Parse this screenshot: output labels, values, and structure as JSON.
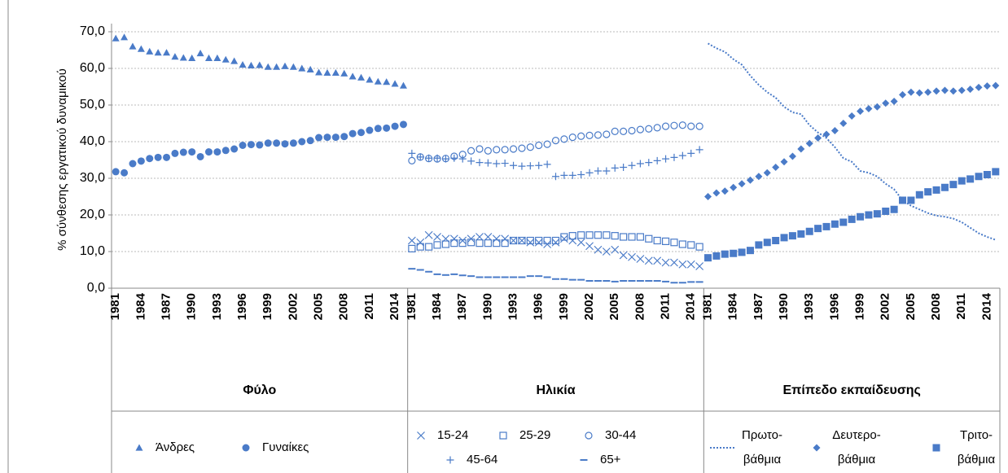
{
  "chart_data": {
    "type": "scatter",
    "ylabel": "% σύνθεσης εργατικού δυναμικού",
    "ylim": [
      0,
      70
    ],
    "yticks": [
      {
        "value": 0,
        "label": "0,0"
      },
      {
        "value": 10,
        "label": "10,0"
      },
      {
        "value": 20,
        "label": "20,0"
      },
      {
        "value": 30,
        "label": "30,0"
      },
      {
        "value": 40,
        "label": "40,0"
      },
      {
        "value": 50,
        "label": "50,0"
      },
      {
        "value": 60,
        "label": "60,0"
      },
      {
        "value": 70,
        "label": "70,0"
      }
    ],
    "grid": true,
    "color": "#4a7bc8",
    "categories": [
      "1981",
      null,
      null,
      "1984",
      null,
      null,
      "1987",
      null,
      null,
      "1990",
      null,
      null,
      "1993",
      null,
      null,
      "1996",
      null,
      null,
      "1999",
      null,
      null,
      "2002",
      null,
      null,
      "2005",
      null,
      null,
      "2008",
      null,
      null,
      "2011",
      null,
      null,
      "2014",
      null
    ],
    "groups": [
      {
        "name": "Φύλο",
        "series": [
          {
            "name": "Άνδρες",
            "marker": "triangle",
            "values": [
              68.2,
              68.5,
              66.0,
              65.3,
              64.6,
              64.3,
              64.3,
              63.2,
              62.9,
              62.8,
              64.1,
              62.8,
              62.8,
              62.4,
              62.0,
              61.0,
              60.8,
              60.9,
              60.4,
              60.4,
              60.6,
              60.4,
              60.0,
              59.7,
              58.9,
              58.8,
              58.8,
              58.6,
              57.8,
              57.5,
              56.9,
              56.4,
              56.3,
              55.8,
              55.3
            ]
          },
          {
            "name": "Γυναίκες",
            "marker": "circle",
            "values": [
              31.8,
              31.5,
              34.0,
              34.7,
              35.4,
              35.7,
              35.7,
              36.8,
              37.1,
              37.2,
              35.9,
              37.2,
              37.2,
              37.6,
              38.0,
              39.0,
              39.2,
              39.1,
              39.6,
              39.6,
              39.4,
              39.6,
              40.0,
              40.3,
              41.1,
              41.2,
              41.2,
              41.4,
              42.2,
              42.5,
              43.1,
              43.6,
              43.7,
              44.2,
              44.7
            ]
          }
        ]
      },
      {
        "name": "Ηλικία",
        "series": [
          {
            "name": "15-24",
            "marker": "x",
            "values": [
              13.0,
              12.5,
              14.5,
              14.0,
              13.5,
              13.5,
              13.0,
              13.5,
              14.0,
              14.0,
              13.5,
              13.5,
              13.0,
              13.0,
              12.5,
              12.5,
              12.0,
              12.5,
              13.5,
              13.0,
              12.5,
              11.5,
              10.5,
              10.0,
              10.5,
              9.0,
              8.5,
              8.0,
              7.5,
              7.5,
              7.0,
              7.0,
              6.5,
              6.5,
              6.0
            ]
          },
          {
            "name": "25-29",
            "marker": "square-open",
            "values": [
              10.8,
              11.3,
              11.3,
              11.8,
              12.0,
              12.3,
              12.3,
              12.5,
              12.3,
              12.3,
              12.3,
              12.3,
              13.0,
              13.0,
              13.0,
              13.0,
              13.0,
              13.0,
              14.0,
              14.3,
              14.5,
              14.5,
              14.5,
              14.5,
              14.3,
              14.0,
              14.0,
              14.0,
              13.5,
              13.0,
              12.8,
              12.5,
              12.0,
              11.8,
              11.3
            ]
          },
          {
            "name": "30-44",
            "marker": "circle-open",
            "values": [
              34.8,
              35.8,
              35.4,
              35.3,
              35.4,
              36.0,
              36.5,
              37.5,
              38.0,
              37.5,
              37.8,
              37.8,
              38.0,
              38.2,
              38.5,
              39.0,
              39.3,
              40.3,
              40.7,
              41.2,
              41.5,
              41.7,
              41.8,
              42.0,
              42.8,
              42.8,
              43.0,
              43.3,
              43.5,
              43.8,
              44.2,
              44.4,
              44.5,
              44.2,
              44.2
            ]
          },
          {
            "name": "45-64",
            "marker": "plus",
            "values": [
              36.8,
              35.8,
              35.5,
              35.5,
              35.3,
              35.5,
              35.3,
              34.7,
              34.3,
              34.2,
              34.0,
              34.1,
              33.5,
              33.3,
              33.4,
              33.5,
              33.8,
              30.5,
              30.8,
              30.8,
              31.0,
              31.5,
              32.0,
              32.0,
              32.8,
              33.0,
              33.5,
              34.0,
              34.3,
              34.8,
              35.3,
              35.7,
              36.2,
              36.8,
              37.8
            ]
          },
          {
            "name": "65+",
            "marker": "dash",
            "values": [
              5.3,
              5.0,
              4.5,
              3.8,
              3.6,
              3.8,
              3.5,
              3.3,
              3.0,
              3.0,
              3.0,
              3.0,
              3.0,
              3.0,
              3.3,
              3.3,
              3.0,
              2.5,
              2.5,
              2.3,
              2.3,
              2.0,
              2.0,
              2.0,
              1.8,
              2.0,
              2.0,
              2.0,
              2.0,
              2.0,
              1.8,
              1.5,
              1.5,
              1.7,
              1.7
            ]
          }
        ]
      },
      {
        "name": "Επίπεδο εκπαίδευσης",
        "series": [
          {
            "name": "Πρωτο-βάθμια",
            "marker": "dotted-line",
            "values": [
              66.8,
              65.5,
              64.5,
              62.5,
              61.0,
              58.0,
              55.5,
              53.5,
              52.0,
              49.5,
              48.0,
              47.5,
              44.5,
              42.5,
              41.0,
              38.5,
              35.5,
              34.5,
              32.0,
              31.5,
              30.5,
              28.5,
              27.0,
              24.0,
              22.5,
              21.5,
              20.5,
              19.8,
              19.5,
              19.0,
              18.0,
              16.5,
              15.0,
              14.0,
              13.2
            ]
          },
          {
            "name": "Δευτερο-βάθμια",
            "marker": "diamond",
            "values": [
              25.0,
              26.0,
              26.5,
              27.5,
              28.5,
              29.5,
              30.5,
              31.5,
              33.0,
              34.5,
              36.0,
              38.0,
              39.5,
              41.0,
              42.0,
              43.0,
              45.0,
              47.0,
              48.3,
              49.0,
              49.5,
              50.5,
              51.0,
              52.8,
              53.5,
              53.3,
              53.5,
              53.8,
              54.0,
              53.8,
              54.0,
              54.3,
              54.8,
              55.2,
              55.3
            ]
          },
          {
            "name": "Τριτο-βάθμια",
            "marker": "square",
            "values": [
              8.3,
              8.8,
              9.3,
              9.5,
              9.8,
              10.3,
              11.8,
              12.5,
              13.0,
              13.8,
              14.3,
              14.8,
              15.5,
              16.3,
              16.8,
              17.5,
              18.0,
              18.8,
              19.5,
              20.0,
              20.3,
              21.0,
              21.5,
              24.0,
              24.0,
              25.5,
              26.3,
              26.8,
              27.5,
              28.3,
              29.3,
              29.8,
              30.5,
              31.0,
              31.8
            ]
          }
        ]
      }
    ]
  }
}
